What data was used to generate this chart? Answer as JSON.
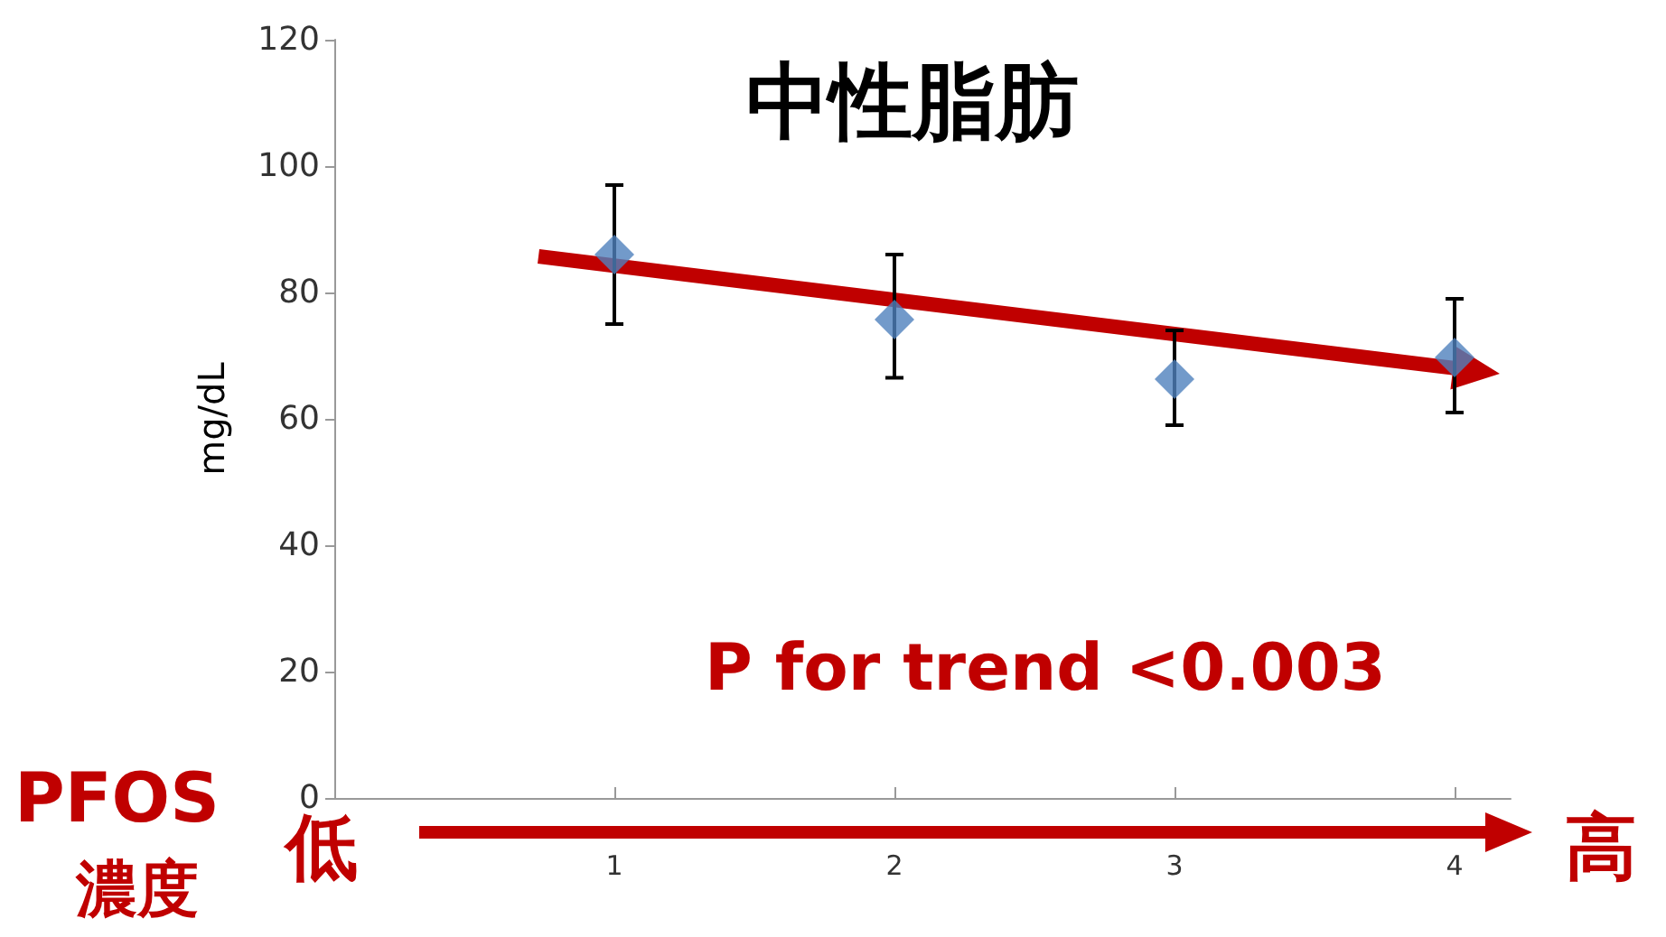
{
  "chart_data": {
    "type": "scatter",
    "title": "中性脂肪",
    "ylabel": "mg/dL",
    "annotations": [
      "P for trend <0.003",
      "PFOS",
      "濃度",
      "低",
      "高"
    ],
    "xlim": [
      0,
      4.2
    ],
    "xticks": [
      1,
      2,
      3,
      4
    ],
    "ylim": [
      0,
      120
    ],
    "yticks": [
      0,
      20,
      40,
      60,
      80,
      100,
      120
    ],
    "grid": false,
    "series": [
      {
        "color": "#4f81bd",
        "marker": "diamond",
        "x": [
          1,
          2,
          3,
          4
        ],
        "values": [
          86,
          75.7,
          66.3,
          69.7
        ],
        "errors": [
          [
            75,
            97
          ],
          [
            66.5,
            86
          ],
          [
            59,
            74
          ],
          [
            61,
            79
          ]
        ]
      }
    ]
  }
}
